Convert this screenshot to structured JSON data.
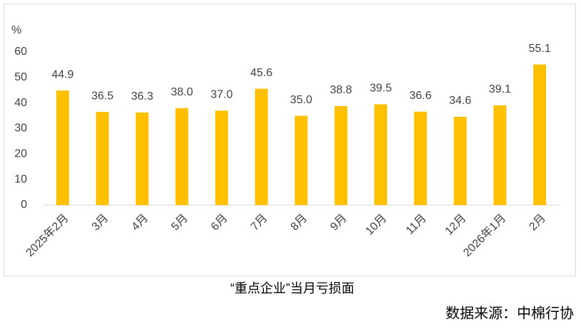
{
  "chart_data": {
    "type": "bar",
    "title": "“重点企业”当月亏损面",
    "source": "数据来源：中棉行协",
    "y_label": "%",
    "categories": [
      "2025年2月",
      "3月",
      "4月",
      "5月",
      "6月",
      "7月",
      "8月",
      "9月",
      "10月",
      "11月",
      "12月",
      "2026年1月",
      "2月"
    ],
    "values": [
      44.9,
      36.5,
      36.3,
      38.0,
      37.0,
      45.6,
      35.0,
      38.8,
      39.5,
      36.6,
      34.6,
      39.1,
      55.1
    ],
    "value_labels": [
      "44.9",
      "36.5",
      "36.3",
      "38.0",
      "37.0",
      "45.6",
      "35.0",
      "38.8",
      "39.5",
      "36.6",
      "34.6",
      "39.1",
      "55.1"
    ],
    "color": "#ffc000",
    "ylim": [
      0,
      60
    ],
    "yticks": [
      0,
      10,
      20,
      30,
      40,
      50,
      60
    ],
    "grid": false
  }
}
